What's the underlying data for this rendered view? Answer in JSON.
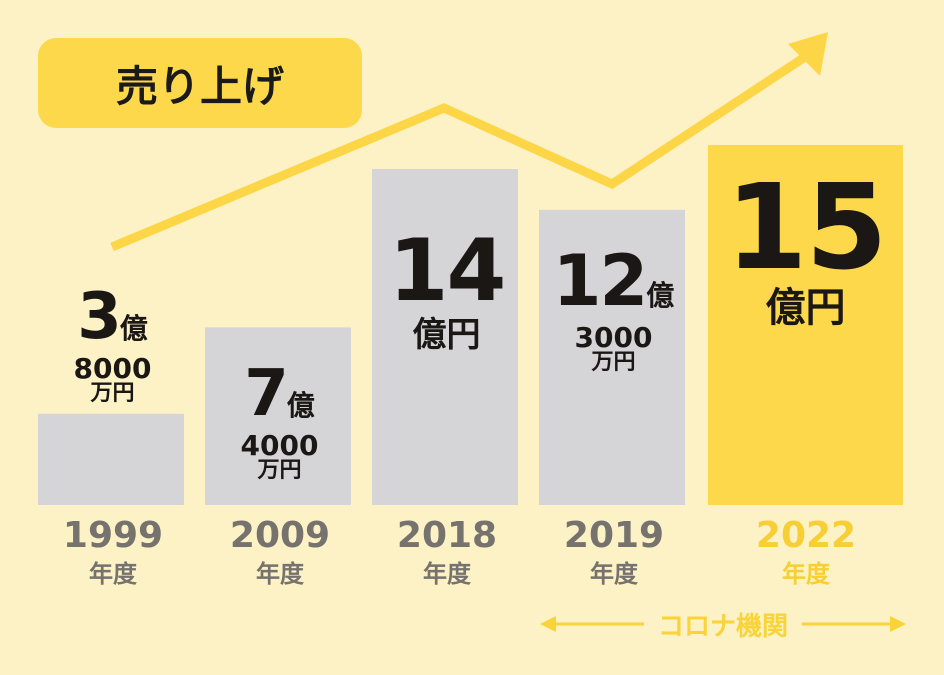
{
  "title": "売り上げ",
  "chart_data": {
    "type": "bar",
    "categories": [
      "1999",
      "2009",
      "2018",
      "2019",
      "2022"
    ],
    "year_unit": "年度",
    "values": [
      3.8,
      7.4,
      14,
      12.3,
      15
    ],
    "unit": "億円",
    "labels": [
      {
        "main": "3",
        "main_unit": "億",
        "sub": "8000",
        "sub_unit": "万円"
      },
      {
        "main": "7",
        "main_unit": "億",
        "sub": "4000",
        "sub_unit": "万円"
      },
      {
        "main": "14",
        "main_unit": "億円",
        "sub": "",
        "sub_unit": ""
      },
      {
        "main": "12",
        "main_unit": "億",
        "sub": "3000",
        "sub_unit": "万円"
      },
      {
        "main": "15",
        "main_unit": "億円",
        "sub": "",
        "sub_unit": ""
      }
    ],
    "highlight_index": 4,
    "colors": {
      "bar": "#d5d5d7",
      "highlight": "#fed84b",
      "trend": "#fdd647",
      "year_text": "#76726d",
      "year_highlight": "#f7cf34"
    },
    "annotation": "コロナ機関"
  }
}
